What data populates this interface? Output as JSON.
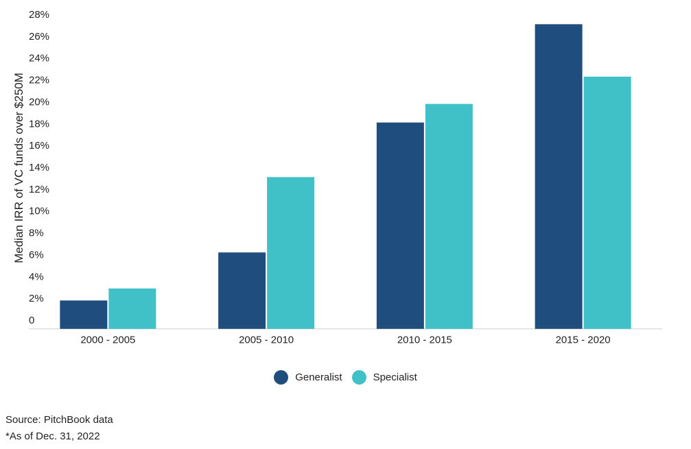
{
  "chart_data": {
    "type": "bar",
    "categories": [
      "2000 - 2005",
      "2005 - 2010",
      "2010 - 2015",
      "2015 - 2020"
    ],
    "series": [
      {
        "name": "Generalist",
        "color": "#1f4e7e",
        "values": [
          1.8,
          6.2,
          18.1,
          27.1
        ]
      },
      {
        "name": "Specialist",
        "color": "#3fc1c7",
        "values": [
          2.9,
          13.1,
          19.8,
          22.3
        ]
      }
    ],
    "title": "",
    "xlabel": "",
    "ylabel": "Median IRR of VC funds over $250M",
    "ylim": [
      -0.8,
      28
    ],
    "yticks": [
      {
        "value": 0,
        "label": "0"
      },
      {
        "value": 2,
        "label": "2%"
      },
      {
        "value": 4,
        "label": "4%"
      },
      {
        "value": 6,
        "label": "6%"
      },
      {
        "value": 8,
        "label": "8%"
      },
      {
        "value": 10,
        "label": "10%"
      },
      {
        "value": 12,
        "label": "12%"
      },
      {
        "value": 14,
        "label": "14%"
      },
      {
        "value": 16,
        "label": "16%"
      },
      {
        "value": 18,
        "label": "18%"
      },
      {
        "value": 20,
        "label": "20%"
      },
      {
        "value": 22,
        "label": "22%"
      },
      {
        "value": 24,
        "label": "24%"
      },
      {
        "value": 26,
        "label": "26%"
      },
      {
        "value": 28,
        "label": "28%"
      }
    ],
    "grid": false,
    "legend_position": "bottom-center"
  },
  "notes": {
    "source": "Source: PitchBook data",
    "as_of": "*As of Dec. 31, 2022"
  }
}
